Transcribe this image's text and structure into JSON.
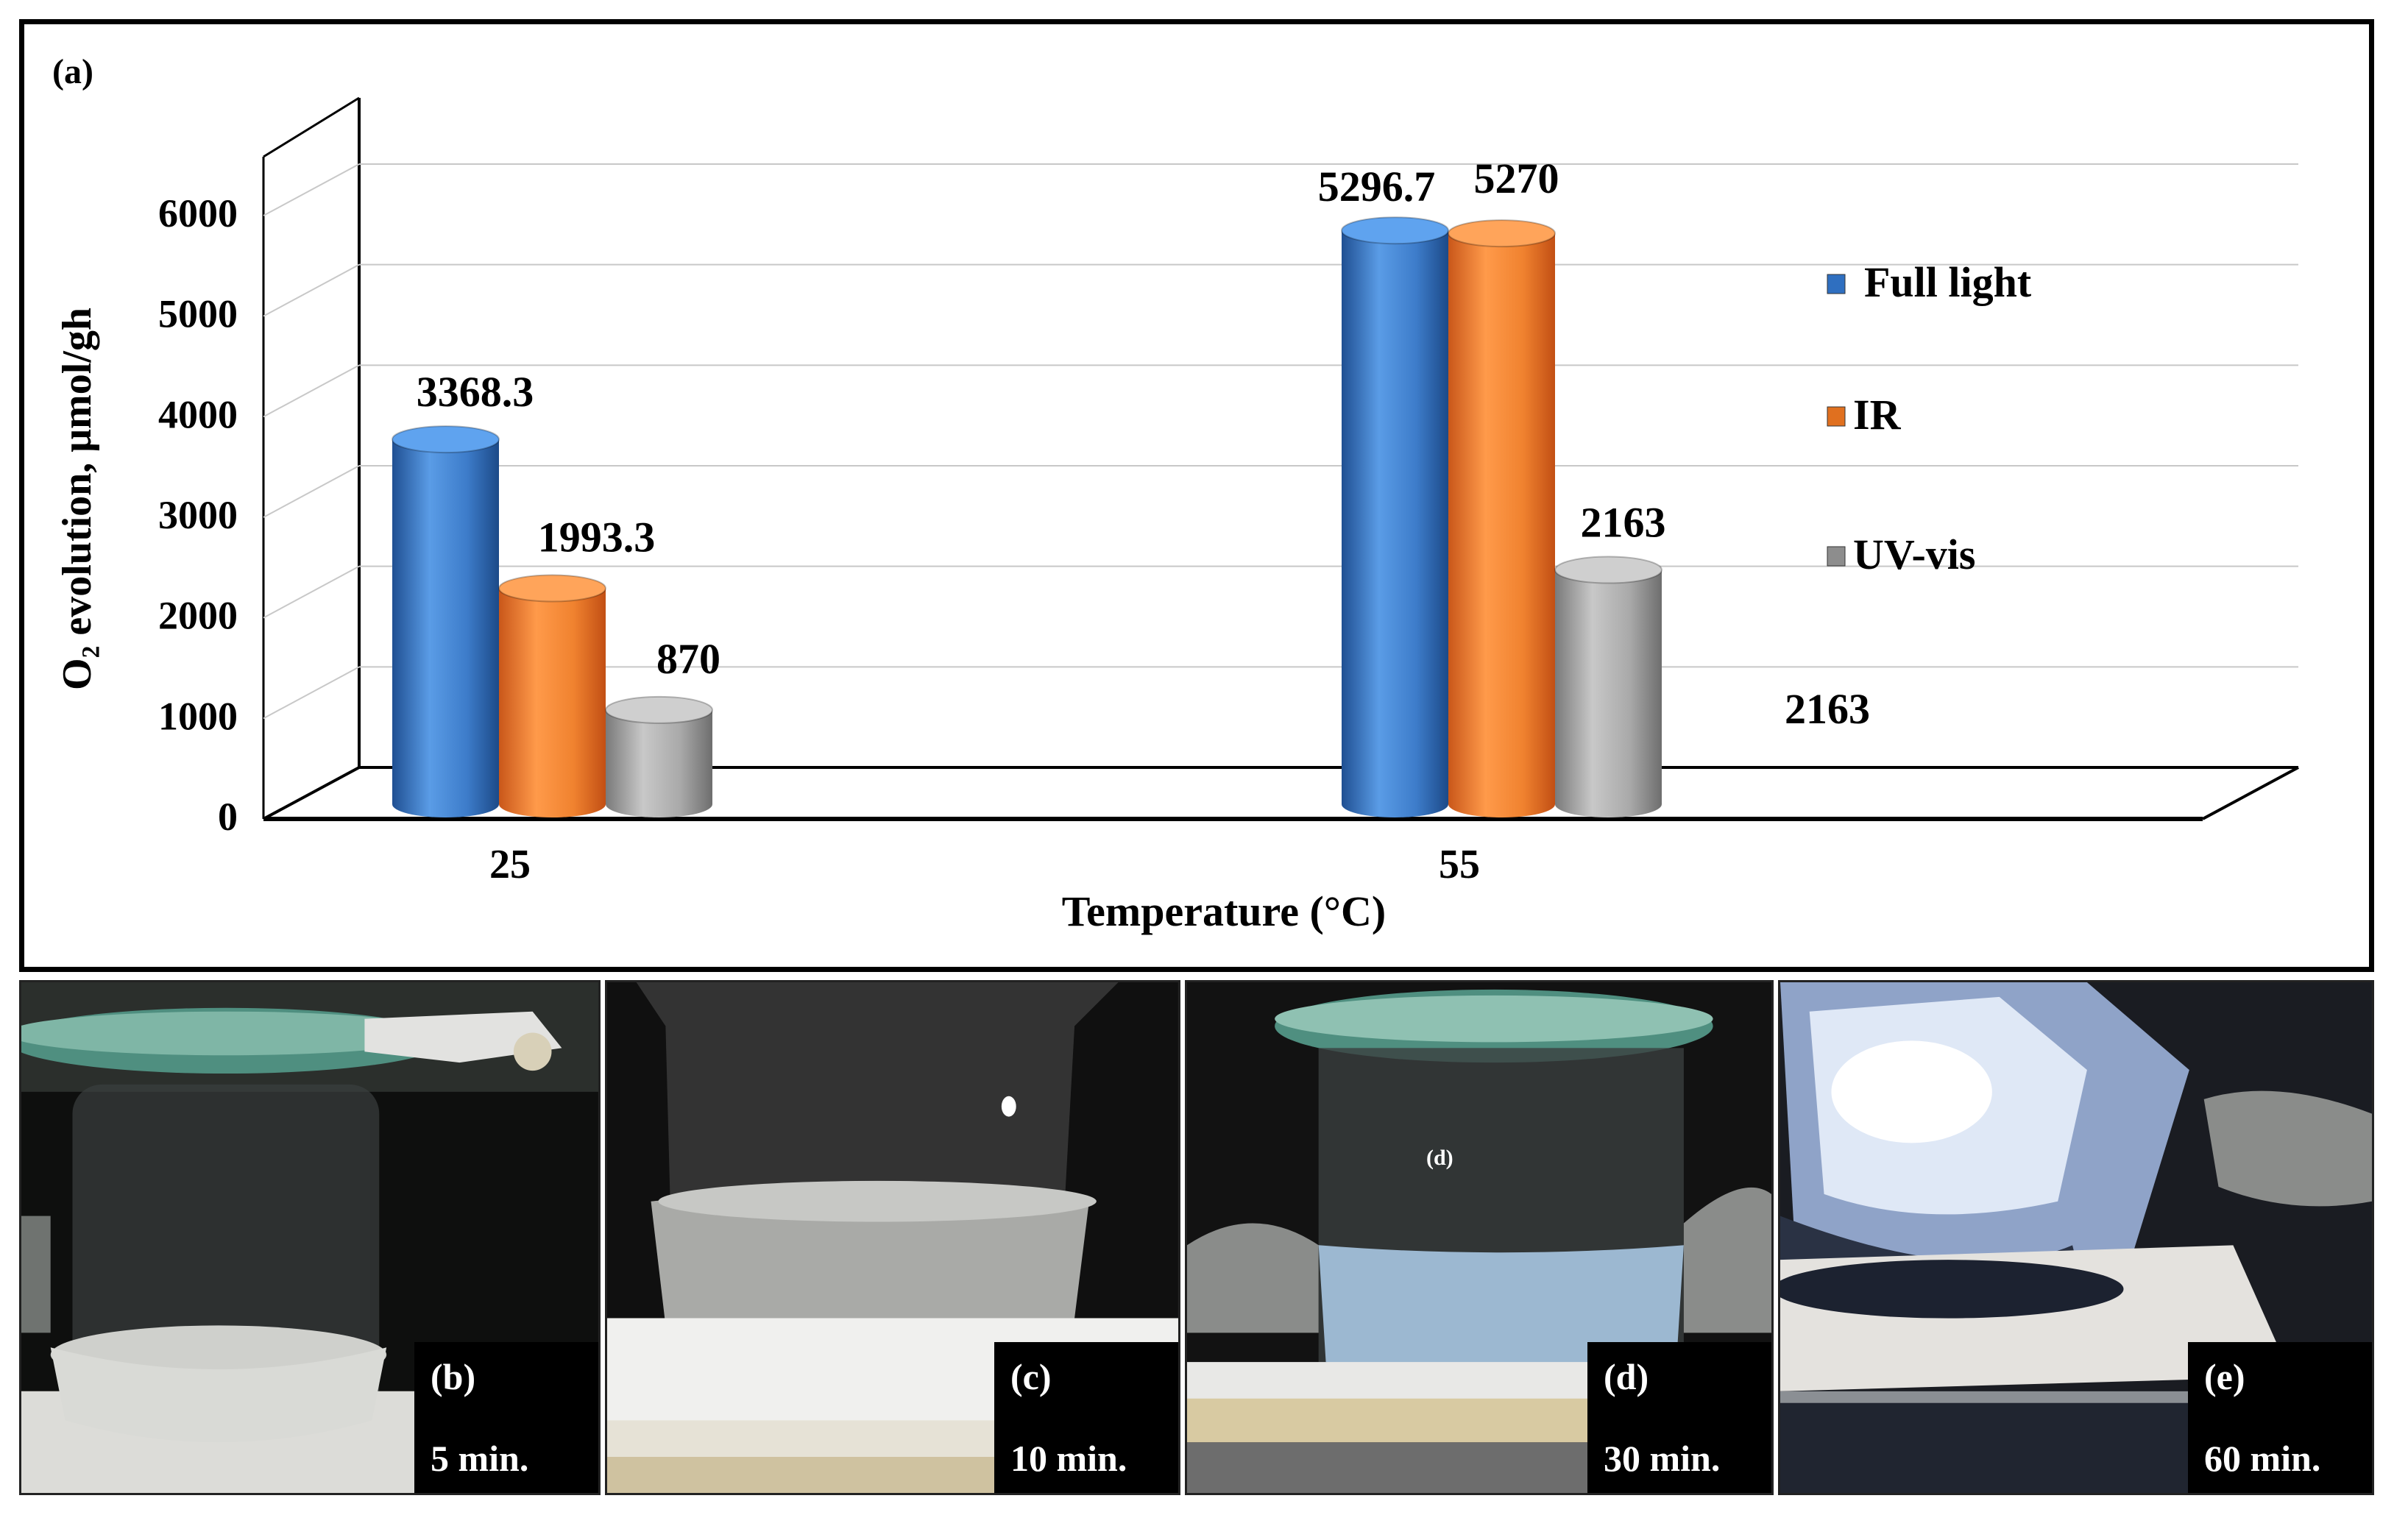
{
  "panel_label": "(a)",
  "chart_data": {
    "type": "bar",
    "categories": [
      "25",
      "55"
    ],
    "series": [
      {
        "name": "Full light",
        "values": [
          3368.3,
          5296.7
        ],
        "labels": [
          "3368.3",
          "5296.7"
        ],
        "color": "#3f7fcf"
      },
      {
        "name": "IR",
        "values": [
          1993.3,
          5270
        ],
        "labels": [
          "1993.3",
          "5270"
        ],
        "color": "#f08a3a"
      },
      {
        "name": "UV-vis",
        "values": [
          870,
          2163
        ],
        "labels": [
          "870",
          "2163"
        ],
        "color": "#a6a6a6"
      }
    ],
    "xlabel": "Temperature (°C)",
    "ylabel": "O₂ evolution, μmol/gh",
    "ylim": [
      0,
      6000
    ],
    "yticks": [
      "0",
      "1000",
      "2000",
      "3000",
      "4000",
      "5000",
      "6000"
    ],
    "grid": true,
    "legend_position": "right",
    "stray_label": "2163"
  },
  "photos": [
    {
      "letter": "(b)",
      "time": "5 min.",
      "theme": "dark-flask"
    },
    {
      "letter": "(c)",
      "time": "10 min.",
      "theme": "gray-flask"
    },
    {
      "letter": "(d)",
      "time": "30 min.",
      "theme": "blue-flask",
      "inner_label": "(d)"
    },
    {
      "letter": "(e)",
      "time": "60 min.",
      "theme": "lit-flask"
    }
  ]
}
